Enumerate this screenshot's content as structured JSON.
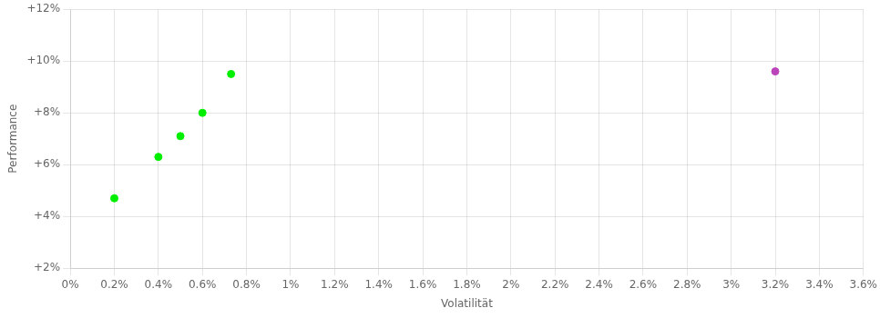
{
  "chart_data": {
    "type": "scatter",
    "xlabel": "Volatilität",
    "ylabel": "Performance",
    "x": [
      0.002,
      0.004,
      0.005,
      0.006,
      0.0073,
      0.032
    ],
    "values": [
      0.047,
      0.063,
      0.071,
      0.08,
      0.095,
      0.096
    ],
    "colors": [
      "#00ee00",
      "#00ee00",
      "#00ee00",
      "#00ee00",
      "#00ee00",
      "#bb44bb"
    ],
    "xlim": [
      0,
      0.036
    ],
    "ylim": [
      0.02,
      0.12
    ],
    "xticks": [
      {
        "value": 0.0,
        "label": "0%"
      },
      {
        "value": 0.002,
        "label": "0.2%"
      },
      {
        "value": 0.004,
        "label": "0.4%"
      },
      {
        "value": 0.006,
        "label": "0.6%"
      },
      {
        "value": 0.008,
        "label": "0.8%"
      },
      {
        "value": 0.01,
        "label": "1%"
      },
      {
        "value": 0.012,
        "label": "1.2%"
      },
      {
        "value": 0.014,
        "label": "1.4%"
      },
      {
        "value": 0.016,
        "label": "1.6%"
      },
      {
        "value": 0.018,
        "label": "1.8%"
      },
      {
        "value": 0.02,
        "label": "2%"
      },
      {
        "value": 0.022,
        "label": "2.2%"
      },
      {
        "value": 0.024,
        "label": "2.4%"
      },
      {
        "value": 0.026,
        "label": "2.6%"
      },
      {
        "value": 0.028,
        "label": "2.8%"
      },
      {
        "value": 0.03,
        "label": "3%"
      },
      {
        "value": 0.032,
        "label": "3.2%"
      },
      {
        "value": 0.034,
        "label": "3.4%"
      },
      {
        "value": 0.036,
        "label": "3.6%"
      }
    ],
    "yticks": [
      {
        "value": 0.02,
        "label": "+2%"
      },
      {
        "value": 0.04,
        "label": "+4%"
      },
      {
        "value": 0.06,
        "label": "+6%"
      },
      {
        "value": 0.08,
        "label": "+8%"
      },
      {
        "value": 0.1,
        "label": "+10%"
      },
      {
        "value": 0.12,
        "label": "+12%"
      }
    ],
    "grid": true
  }
}
